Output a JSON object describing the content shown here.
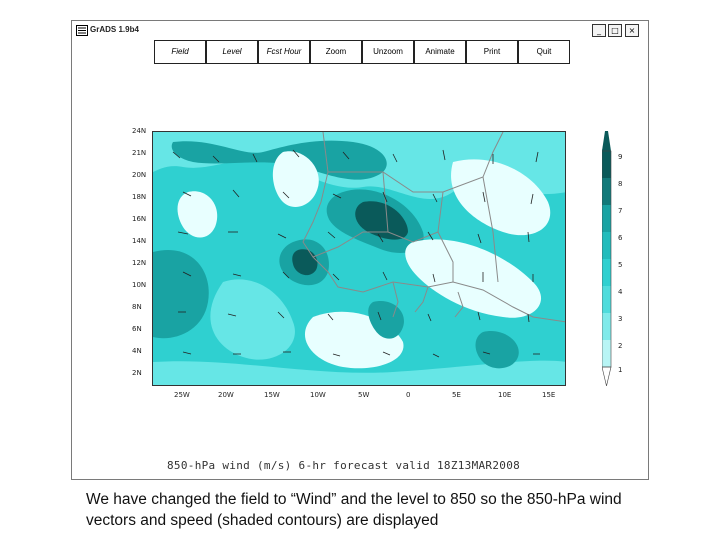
{
  "window": {
    "title": "GrADS 1.9b4"
  },
  "window_controls": {
    "minimize": "_",
    "maximize": "□",
    "close": "×"
  },
  "menu": [
    {
      "label": "Field",
      "italic": true
    },
    {
      "label": "Level",
      "italic": true
    },
    {
      "label": "Fcst Hour",
      "italic": true
    },
    {
      "label": "Zoom",
      "italic": false
    },
    {
      "label": "Unzoom",
      "italic": false
    },
    {
      "label": "Animate",
      "italic": false
    },
    {
      "label": "Print",
      "italic": false
    },
    {
      "label": "Quit",
      "italic": false
    }
  ],
  "map": {
    "lat_labels": [
      "24N",
      "21N",
      "20N",
      "18N",
      "16N",
      "14N",
      "12N",
      "10N",
      "8N",
      "6N",
      "4N",
      "2N"
    ],
    "lon_labels": [
      "25W",
      "20W",
      "15W",
      "10W",
      "5W",
      "0",
      "5E",
      "10E",
      "15E"
    ],
    "colorbar_labels": [
      "9",
      "8",
      "7",
      "6",
      "5",
      "4",
      "3",
      "2",
      "1"
    ],
    "caption": "850-hPa wind (m/s) 6-hr forecast valid 18Z13MAR2008"
  },
  "colors": {
    "light": "#e8ffff",
    "mid": "#66e6e6",
    "cyan": "#2fd0d0",
    "teal": "#19a3a3",
    "dark": "#0a5a5a"
  },
  "slide_text": "We have changed the field to “Wind” and the level to 850 so the 850-h​Pa wind vectors and speed (shaded contours) are displayed"
}
